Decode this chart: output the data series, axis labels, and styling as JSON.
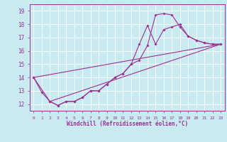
{
  "xlabel": "Windchill (Refroidissement éolien,°C)",
  "ylabel": "",
  "bg_color": "#c8eaf0",
  "line_color": "#9b3090",
  "xlim": [
    -0.5,
    23.5
  ],
  "ylim": [
    11.5,
    19.5
  ],
  "xticks": [
    0,
    1,
    2,
    3,
    4,
    5,
    6,
    7,
    8,
    9,
    10,
    11,
    12,
    13,
    14,
    15,
    16,
    17,
    18,
    19,
    20,
    21,
    22,
    23
  ],
  "yticks": [
    12,
    13,
    14,
    15,
    16,
    17,
    18,
    19
  ],
  "line1_x": [
    0,
    1,
    2,
    3,
    4,
    5,
    6,
    7,
    8,
    9,
    10,
    11,
    12,
    13,
    14,
    15,
    16,
    17,
    18,
    19,
    20,
    21,
    22,
    23
  ],
  "line1_y": [
    14.0,
    12.9,
    12.2,
    11.9,
    12.2,
    12.2,
    12.5,
    13.0,
    13.0,
    13.5,
    14.0,
    14.3,
    15.0,
    16.5,
    17.9,
    16.5,
    17.6,
    17.8,
    18.0,
    17.1,
    16.8,
    16.6,
    16.5,
    16.5
  ],
  "line2_x": [
    0,
    2,
    3,
    4,
    5,
    6,
    7,
    8,
    9,
    10,
    11,
    12,
    13,
    14,
    15,
    16,
    17,
    18,
    19,
    20,
    21,
    22,
    23
  ],
  "line2_y": [
    14.0,
    12.2,
    11.9,
    12.2,
    12.2,
    12.5,
    13.0,
    13.0,
    13.5,
    14.0,
    14.3,
    15.0,
    15.3,
    16.4,
    18.7,
    18.8,
    18.7,
    17.8,
    17.1,
    16.8,
    16.6,
    16.5,
    16.5
  ],
  "line3_x": [
    0,
    23
  ],
  "line3_y": [
    14.0,
    16.5
  ],
  "line4_x": [
    2,
    23
  ],
  "line4_y": [
    12.2,
    16.5
  ]
}
